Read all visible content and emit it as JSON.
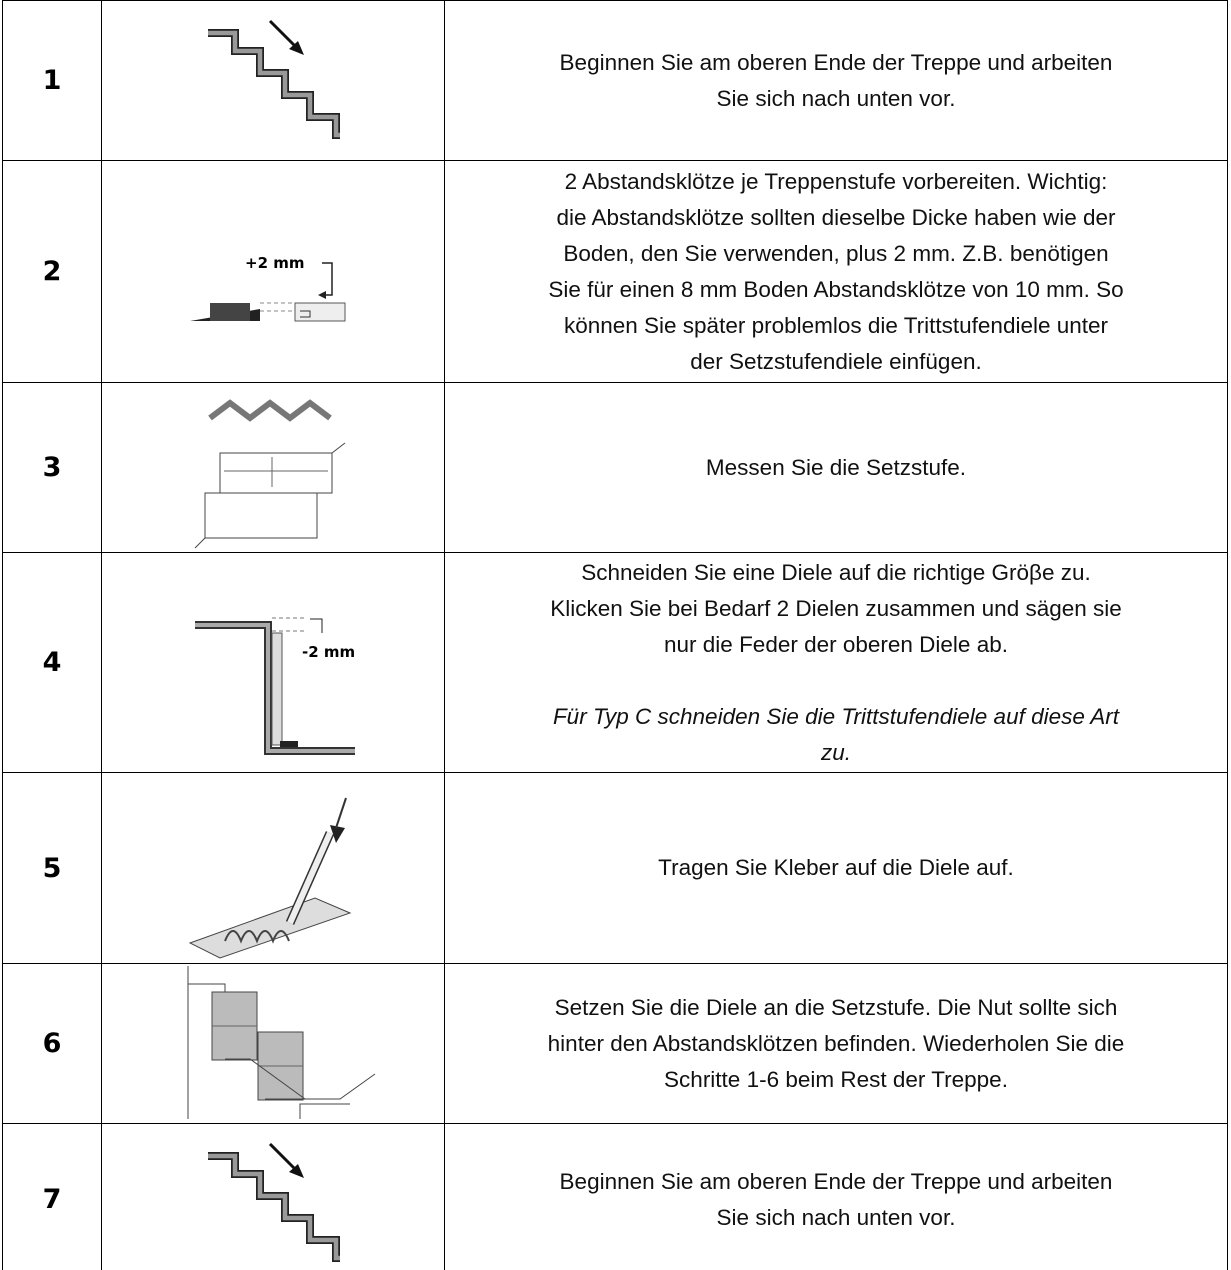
{
  "rows": [
    {
      "number": "1",
      "lines": [
        "Beginnen Sie am oberen Ende der Treppe und arbeiten",
        "Sie sich nach unten vor."
      ]
    },
    {
      "number": "2",
      "figure_label": "+2 mm",
      "lines": [
        "2 Abstandsklötze je Treppenstufe vorbereiten. Wichtig:",
        "die Abstandsklötze sollten dieselbe Dicke haben wie der",
        "Boden, den Sie verwenden, plus 2 mm. Z.B. benötigen",
        "Sie für einen 8 mm Boden Abstandsklötze von 10 mm. So",
        "können Sie später problemlos die Trittstufendiele unter",
        "der Setzstufendiele einfügen."
      ]
    },
    {
      "number": "3",
      "lines": [
        "Messen Sie die Setzstufe."
      ]
    },
    {
      "number": "4",
      "figure_label": "-2 mm",
      "lines": [
        "Schneiden Sie eine Diele auf die richtige Gröβe zu.",
        "Klicken Sie bei Bedarf 2 Dielen zusammen und sägen sie",
        "nur die Feder der oberen Diele ab."
      ],
      "note_lines": [
        "Für Typ C schneiden Sie die Trittstufendiele auf diese Art",
        "zu."
      ]
    },
    {
      "number": "5",
      "lines": [
        "Tragen Sie Kleber auf die Diele auf."
      ]
    },
    {
      "number": "6",
      "lines": [
        "Setzen Sie die Diele an die Setzstufe. Die Nut sollte sich",
        "hinter den Abstandsklötzen befinden. Wiederholen Sie die",
        "Schritte 1-6 beim Rest der Treppe."
      ]
    },
    {
      "number": "7",
      "lines": [
        "Beginnen Sie am oberen Ende der Treppe und arbeiten",
        "Sie sich nach unten vor."
      ]
    }
  ]
}
